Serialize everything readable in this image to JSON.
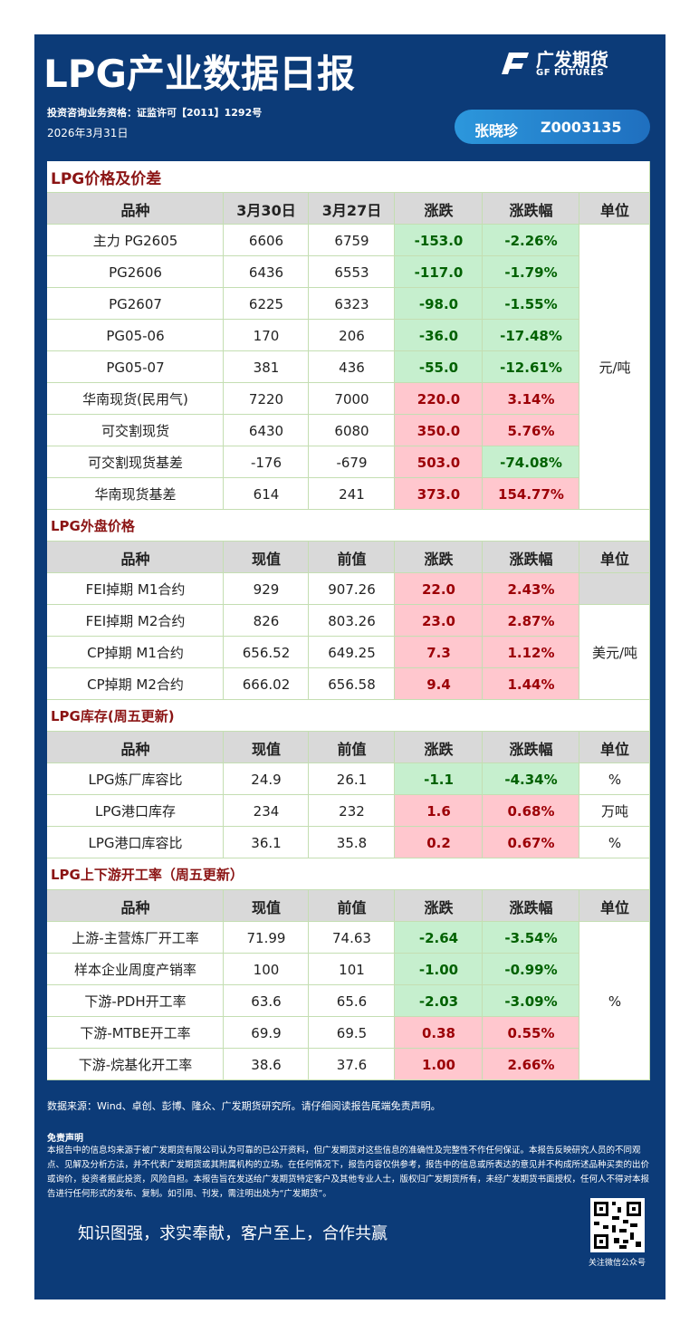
{
  "header": {
    "title": "LPG产业数据日报",
    "logo_cn": "广发期货",
    "logo_en": "GF FUTURES",
    "license": "投资咨询业务资格：证监许可【2011】1292号",
    "date": "2026年3月31日",
    "analyst": "张晓珍",
    "analyst_id": "Z0003135"
  },
  "sections": [
    {
      "title": "LPG价格及价差",
      "headers": [
        "品种",
        "3月30日",
        "3月27日",
        "涨跌",
        "涨跌幅",
        "单位"
      ],
      "rows": [
        {
          "name": "主力 PG2605",
          "current": "6606",
          "previous": "6759",
          "change": "-153.0",
          "pct": "-2.26%",
          "unit": "元/吨"
        },
        {
          "name": "PG2606",
          "current": "6436",
          "previous": "6553",
          "change": "-117.0",
          "pct": "-1.79%"
        },
        {
          "name": "PG2607",
          "current": "6225",
          "previous": "6323",
          "change": "-98.0",
          "pct": "-1.55%"
        },
        {
          "name": "PG05-06",
          "current": "170",
          "previous": "206",
          "change": "-36.0",
          "pct": "-17.48%"
        },
        {
          "name": "PG05-07",
          "current": "381",
          "previous": "436",
          "change": "-55.0",
          "pct": "-12.61%"
        },
        {
          "name": "华南现货(民用气)",
          "current": "7220",
          "previous": "7000",
          "change": "220.0",
          "pct": "3.14%"
        },
        {
          "name": "可交割现货",
          "current": "6430",
          "previous": "6080",
          "change": "350.0",
          "pct": "5.76%"
        },
        {
          "name": "可交割现货基差",
          "current": "-176",
          "previous": "-679",
          "change": "503.0",
          "pct": "-74.08%"
        },
        {
          "name": "华南现货基差",
          "current": "614",
          "previous": "241",
          "change": "373.0",
          "pct": "154.77%"
        }
      ]
    },
    {
      "title": "LPG外盘价格",
      "headers": [
        "品种",
        "现值",
        "前值",
        "涨跌",
        "涨跌幅",
        "单位"
      ],
      "rows": [
        {
          "name": "FEI掉期 M1合约",
          "current": "929",
          "previous": "907.26",
          "change": "22.0",
          "pct": "2.43%",
          "unit": null
        },
        {
          "name": "FEI掉期 M2合约",
          "current": "826",
          "previous": "803.26",
          "change": "23.0",
          "pct": "2.87%",
          "unit": "美元/吨"
        },
        {
          "name": "CP掉期 M1合约",
          "current": "656.52",
          "previous": "649.25",
          "change": "7.3",
          "pct": "1.12%"
        },
        {
          "name": "CP掉期 M2合约",
          "current": "666.02",
          "previous": "656.58",
          "change": "9.4",
          "pct": "1.44%"
        }
      ]
    },
    {
      "title": "LPG库存(周五更新)",
      "headers": [
        "品种",
        "现值",
        "前值",
        "涨跌",
        "涨跌幅",
        "单位"
      ],
      "rows": [
        {
          "name": "LPG炼厂库容比",
          "current": "24.9",
          "previous": "26.1",
          "change": "-1.1",
          "pct": "-4.34%",
          "unit": "%"
        },
        {
          "name": "LPG港口库存",
          "current": "234",
          "previous": "232",
          "change": "1.6",
          "pct": "0.68%",
          "unit": "万吨"
        },
        {
          "name": "LPG港口库容比",
          "current": "36.1",
          "previous": "35.8",
          "change": "0.2",
          "pct": "0.67%",
          "unit": "%"
        }
      ]
    },
    {
      "title": "LPG上下游开工率（周五更新）",
      "headers": [
        "品种",
        "现值",
        "前值",
        "涨跌",
        "涨跌幅",
        "单位"
      ],
      "rows": [
        {
          "name": "上游-主营炼厂开工率",
          "current": "71.99",
          "previous": "74.63",
          "change": "-2.64",
          "pct": "-3.54%",
          "unit": "%"
        },
        {
          "name": "样本企业周度产销率",
          "current": "100",
          "previous": "101",
          "change": "-1.00",
          "pct": "-0.99%"
        },
        {
          "name": "下游-PDH开工率",
          "current": "63.6",
          "previous": "65.6",
          "change": "-2.03",
          "pct": "-3.09%"
        },
        {
          "name": "下游-MTBE开工率",
          "current": "69.9",
          "previous": "69.5",
          "change": "0.38",
          "pct": "0.55%"
        },
        {
          "name": "下游-烷基化开工率",
          "current": "38.6",
          "previous": "37.6",
          "change": "1.00",
          "pct": "2.66%"
        }
      ]
    }
  ],
  "footer": {
    "source": "数据来源：Wind、卓创、彭博、隆众、广发期货研究所。请仔细阅读报告尾端免责声明。",
    "disclaimer_title": "免责声明",
    "disclaimer": "本报告中的信息均来源于被广发期货有限公司认为可靠的已公开资料，但广发期货对这些信息的准确性及完整性不作任何保证。本报告反映研究人员的不同观点、见解及分析方法，并不代表广发期货或其附属机构的立场。在任何情况下，报告内容仅供参考，报告中的信息或所表达的意见并不构成所述品种买卖的出价或询价，投资者据此投资，风险自担。本报告旨在发送给广发期货特定客户及其他专业人士，版权归广发期货所有，未经广发期货书面授权，任何人不得对本报告进行任何形式的发布、复制。如引用、刊发，需注明出处为“广发期货”。",
    "slogan": "知识图强，求实奉献，客户至上，合作共赢",
    "qr_caption": "关注微信公众号"
  }
}
